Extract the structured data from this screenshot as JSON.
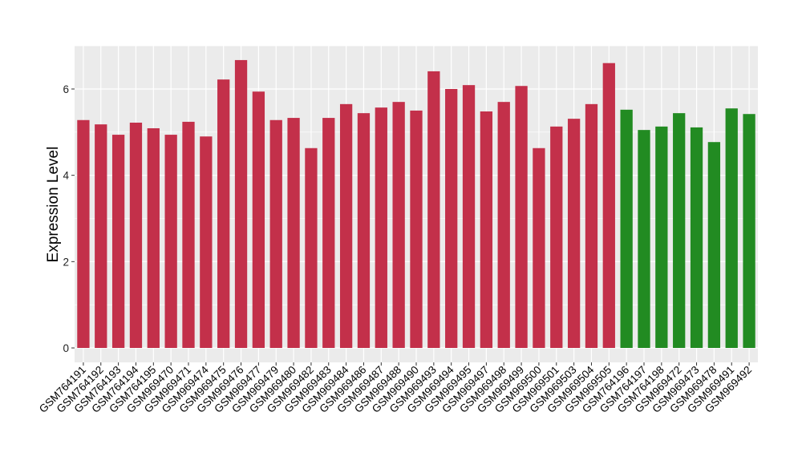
{
  "chart_data": {
    "type": "bar",
    "title": "",
    "xlabel": "",
    "ylabel": "Expression Level",
    "ylim": [
      -0.35,
      7.0
    ],
    "yticks": [
      0,
      2,
      4,
      6
    ],
    "grid": true,
    "colors": {
      "group1": "#C3304A",
      "group2": "#228B22",
      "panel": "#EBEBEB",
      "grid": "#FFFFFF"
    },
    "categories": [
      "GSM764191",
      "GSM764192",
      "GSM764193",
      "GSM764194",
      "GSM764195",
      "GSM969470",
      "GSM969471",
      "GSM969474",
      "GSM969475",
      "GSM969476",
      "GSM969477",
      "GSM969479",
      "GSM969480",
      "GSM969482",
      "GSM969483",
      "GSM969484",
      "GSM969486",
      "GSM969487",
      "GSM969488",
      "GSM969490",
      "GSM969493",
      "GSM969494",
      "GSM969495",
      "GSM969497",
      "GSM969498",
      "GSM969499",
      "GSM969500",
      "GSM969501",
      "GSM969503",
      "GSM969504",
      "GSM969505",
      "GSM764196",
      "GSM764197",
      "GSM764198",
      "GSM969472",
      "GSM969473",
      "GSM969478",
      "GSM969491",
      "GSM969492"
    ],
    "values": [
      5.28,
      5.18,
      4.94,
      5.22,
      5.09,
      4.94,
      5.24,
      4.9,
      6.22,
      6.67,
      5.94,
      5.28,
      5.33,
      4.63,
      5.33,
      5.65,
      5.44,
      5.57,
      5.7,
      5.5,
      6.41,
      6.0,
      6.09,
      5.48,
      5.7,
      6.07,
      4.63,
      5.13,
      5.31,
      5.65,
      6.6,
      5.52,
      5.05,
      5.13,
      5.44,
      5.11,
      4.77,
      5.55,
      5.42
    ],
    "groups": [
      1,
      1,
      1,
      1,
      1,
      1,
      1,
      1,
      1,
      1,
      1,
      1,
      1,
      1,
      1,
      1,
      1,
      1,
      1,
      1,
      1,
      1,
      1,
      1,
      1,
      1,
      1,
      1,
      1,
      1,
      1,
      2,
      2,
      2,
      2,
      2,
      2,
      2,
      2
    ]
  }
}
